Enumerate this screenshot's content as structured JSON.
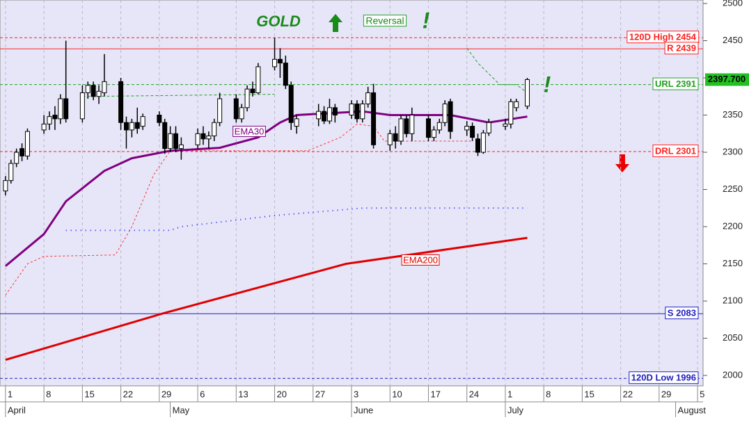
{
  "chart_data": {
    "type": "candlestick",
    "title": "GOLD",
    "xlim": [
      "03-31",
      "08-06"
    ],
    "ylim": [
      1986,
      2504.7
    ],
    "yticks": [
      2000,
      2050,
      2100,
      2150,
      2200,
      2250,
      2300,
      2350,
      2400,
      2450,
      2500
    ],
    "xticks": [
      {
        "value": "04-01",
        "label": "1"
      },
      {
        "value": "04-08",
        "label": "8"
      },
      {
        "value": "04-15",
        "label": "15"
      },
      {
        "value": "04-22",
        "label": "22"
      },
      {
        "value": "04-29",
        "label": "29"
      },
      {
        "value": "05-06",
        "label": "6"
      },
      {
        "value": "05-13",
        "label": "13"
      },
      {
        "value": "05-20",
        "label": "20"
      },
      {
        "value": "05-27",
        "label": "27"
      },
      {
        "value": "06-03",
        "label": "3"
      },
      {
        "value": "06-10",
        "label": "10"
      },
      {
        "value": "06-17",
        "label": "17"
      },
      {
        "value": "06-24",
        "label": "24"
      },
      {
        "value": "07-01",
        "label": "1"
      },
      {
        "value": "07-08",
        "label": "8"
      },
      {
        "value": "07-15",
        "label": "15"
      },
      {
        "value": "07-22",
        "label": "22"
      },
      {
        "value": "07-29",
        "label": "29"
      },
      {
        "value": "08-05",
        "label": "5"
      }
    ],
    "months": [
      {
        "value": "04-01",
        "label": "April"
      },
      {
        "value": "05-01",
        "label": "May"
      },
      {
        "value": "06-03",
        "label": "June"
      },
      {
        "value": "07-01",
        "label": "July"
      },
      {
        "value": "08-01",
        "label": "August"
      }
    ],
    "grid": true,
    "background": "#e6e6f8",
    "candles": {
      "x": [
        "04-01",
        "04-02",
        "04-03",
        "04-04",
        "04-05",
        "04-08",
        "04-09",
        "04-10",
        "04-11",
        "04-12",
        "04-15",
        "04-16",
        "04-17",
        "04-18",
        "04-19",
        "04-22",
        "04-23",
        "04-24",
        "04-25",
        "04-26",
        "04-29",
        "04-30",
        "05-01",
        "05-02",
        "05-03",
        "05-06",
        "05-07",
        "05-08",
        "05-09",
        "05-10",
        "05-13",
        "05-14",
        "05-15",
        "05-16",
        "05-17",
        "05-20",
        "05-21",
        "05-22",
        "05-23",
        "05-24",
        "05-28",
        "05-29",
        "05-30",
        "05-31",
        "06-03",
        "06-04",
        "06-05",
        "06-06",
        "06-07",
        "06-10",
        "06-11",
        "06-12",
        "06-13",
        "06-14",
        "06-17",
        "06-18",
        "06-19",
        "06-20",
        "06-21",
        "06-24",
        "06-25",
        "06-26",
        "06-27",
        "06-28",
        "07-01",
        "07-02",
        "07-03",
        "07-05"
      ],
      "open": [
        2248,
        2262,
        2285,
        2305,
        2295,
        2330,
        2338,
        2350,
        2345,
        2372,
        2345,
        2380,
        2390,
        2375,
        2380,
        2395,
        2340,
        2330,
        2340,
        2335,
        2350,
        2340,
        2305,
        2325,
        2305,
        2310,
        2325,
        2318,
        2322,
        2340,
        2372,
        2345,
        2360,
        2385,
        2380,
        2415,
        2425,
        2420,
        2390,
        2335,
        2345,
        2355,
        2342,
        2360,
        2350,
        2365,
        2345,
        2365,
        2380,
        2310,
        2325,
        2315,
        2345,
        2325,
        2345,
        2320,
        2330,
        2340,
        2368,
        2330,
        2335,
        2318,
        2300,
        2326,
        2335,
        2338,
        2360,
        2362
      ],
      "high": [
        2268,
        2290,
        2305,
        2312,
        2332,
        2350,
        2355,
        2362,
        2378,
        2450,
        2390,
        2395,
        2395,
        2390,
        2432,
        2400,
        2348,
        2345,
        2360,
        2352,
        2355,
        2345,
        2335,
        2335,
        2320,
        2332,
        2335,
        2328,
        2345,
        2380,
        2378,
        2365,
        2390,
        2395,
        2420,
        2454,
        2440,
        2430,
        2395,
        2350,
        2365,
        2362,
        2372,
        2365,
        2370,
        2370,
        2370,
        2388,
        2392,
        2330,
        2335,
        2350,
        2350,
        2360,
        2350,
        2335,
        2345,
        2370,
        2372,
        2342,
        2340,
        2325,
        2330,
        2345,
        2345,
        2372,
        2372,
        2400
      ],
      "low": [
        2242,
        2258,
        2280,
        2288,
        2290,
        2325,
        2330,
        2330,
        2338,
        2340,
        2340,
        2372,
        2370,
        2365,
        2375,
        2330,
        2305,
        2320,
        2325,
        2330,
        2335,
        2298,
        2300,
        2300,
        2290,
        2305,
        2310,
        2305,
        2315,
        2335,
        2340,
        2340,
        2355,
        2375,
        2378,
        2410,
        2400,
        2385,
        2330,
        2325,
        2335,
        2338,
        2338,
        2340,
        2345,
        2340,
        2340,
        2360,
        2305,
        2302,
        2305,
        2310,
        2320,
        2315,
        2315,
        2315,
        2325,
        2335,
        2318,
        2322,
        2315,
        2295,
        2298,
        2322,
        2330,
        2332,
        2355,
        2358
      ],
      "close": [
        2262,
        2285,
        2300,
        2295,
        2328,
        2338,
        2348,
        2345,
        2372,
        2345,
        2380,
        2390,
        2375,
        2382,
        2395,
        2340,
        2330,
        2340,
        2332,
        2348,
        2340,
        2305,
        2325,
        2305,
        2310,
        2325,
        2318,
        2322,
        2340,
        2372,
        2345,
        2360,
        2385,
        2380,
        2415,
        2425,
        2420,
        2390,
        2340,
        2345,
        2355,
        2342,
        2360,
        2350,
        2365,
        2345,
        2365,
        2380,
        2310,
        2325,
        2315,
        2345,
        2325,
        2350,
        2320,
        2330,
        2340,
        2365,
        2328,
        2335,
        2320,
        2300,
        2326,
        2340,
        2338,
        2368,
        2368,
        2397.7
      ]
    },
    "series": [
      {
        "name": "EMA30",
        "color": "#800080",
        "x": [
          "04-01",
          "04-08",
          "04-12",
          "04-19",
          "04-24",
          "05-01",
          "05-10",
          "05-17",
          "05-21",
          "05-24",
          "06-05",
          "06-10",
          "06-21",
          "06-28",
          "07-05"
        ],
        "values": [
          2147,
          2190,
          2234,
          2275,
          2292,
          2302,
          2306,
          2320,
          2340,
          2350,
          2355,
          2350,
          2350,
          2340,
          2348
        ]
      },
      {
        "name": "EMA200",
        "color": "#e00000",
        "x": [
          "04-01",
          "04-30",
          "06-02",
          "07-05"
        ],
        "values": [
          2021,
          2084,
          2150,
          2185
        ]
      }
    ],
    "overlays": [
      {
        "color": "#ff3030",
        "dash": "3,3",
        "x": [
          "04-01",
          "04-05",
          "04-08",
          "04-21",
          "04-24",
          "04-28",
          "05-01",
          "05-26",
          "06-01",
          "06-04",
          "06-07",
          "06-09",
          "06-25"
        ],
        "values": [
          2108,
          2150,
          2160,
          2162,
          2200,
          2270,
          2302,
          2302,
          2320,
          2338,
          2335,
          2315,
          2315
        ]
      },
      {
        "color": "#20a020",
        "dash": "4,3",
        "x": [
          "04-15",
          "05-20",
          "05-21",
          "06-24",
          "06-26",
          "06-30",
          "07-03",
          "07-05"
        ],
        "values": [
          2375,
          2378,
          null,
          2440,
          2420,
          2391,
          2391,
          2380
        ]
      },
      {
        "color": "#2020ff",
        "dash": "1,6",
        "x": [
          "04-12",
          "05-01",
          "05-03",
          "05-20",
          "06-05",
          "07-05"
        ],
        "values": [
          2195,
          2195,
          2200,
          2215,
          2225,
          2225
        ]
      }
    ],
    "levels": [
      {
        "label": "120D High 2454",
        "value": 2454,
        "color": "#ff2020",
        "dash": "4,3"
      },
      {
        "label": "R 2439",
        "value": 2439,
        "color": "#ff2020",
        "dash": ""
      },
      {
        "label": "URL 2391",
        "value": 2391,
        "color": "#20a020",
        "dash": "4,3"
      },
      {
        "label": "DRL 2301",
        "value": 2301,
        "color": "#ff2020",
        "dash": "4,3"
      },
      {
        "label": "S 2083",
        "value": 2083,
        "color": "#2020c0",
        "dash": ""
      },
      {
        "label": "120D Low 1996",
        "value": 1996,
        "color": "#2020c0",
        "dash": "4,3"
      }
    ],
    "last_price": {
      "value": 2397.7,
      "label": "2397.700"
    },
    "annotations": [
      "Reversal",
      "!",
      "!"
    ]
  }
}
